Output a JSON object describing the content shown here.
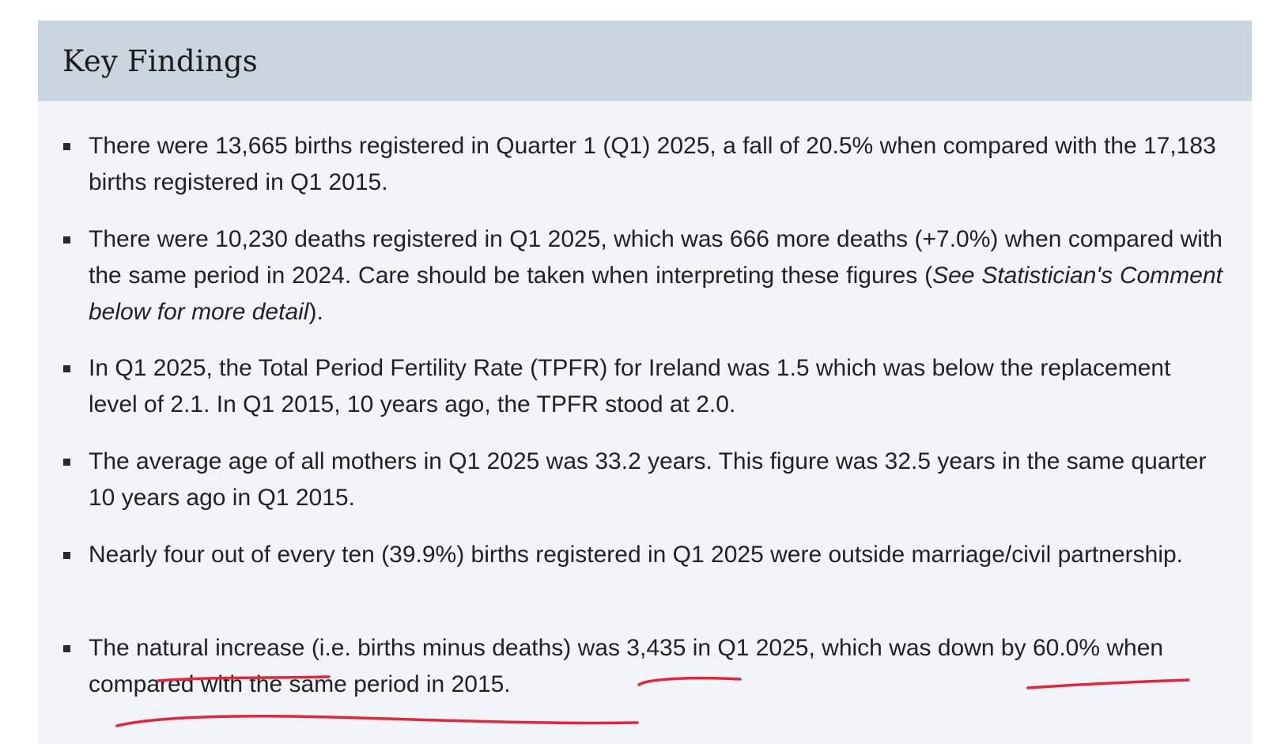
{
  "panel": {
    "title": "Key Findings"
  },
  "findings": [
    {
      "text": "There were 13,665 births registered in Quarter 1 (Q1) 2025, a fall of 20.5% when compared with the 17,183 births registered in Q1 2015."
    },
    {
      "text_before": "There were 10,230 deaths registered in Q1 2025, which was 666 more deaths (+7.0%) when compared with the same period in 2024. Care should be taken when interpreting these figures (",
      "text_italic": "See Statistician's Comment below for more detail",
      "text_after": ")."
    },
    {
      "text": "In Q1 2025, the Total Period Fertility Rate (TPFR) for Ireland was 1.5 which was below the replacement level of 2.1. In Q1 2015, 10 years ago, the TPFR stood at 2.0."
    },
    {
      "text": "The average age of all mothers in Q1 2025 was 33.2 years. This figure was 32.5 years in the same quarter 10 years ago in Q1 2015."
    },
    {
      "text": "Nearly four out of every ten (39.9%) births registered in Q1 2025 were outside marriage/civil partnership."
    },
    {
      "text": "The natural increase (i.e. births minus deaths) was 3,435 in Q1 2025, which was down by 60.0% when compared with the same period in 2015."
    }
  ],
  "annotation": {
    "color": "#e8243a"
  }
}
